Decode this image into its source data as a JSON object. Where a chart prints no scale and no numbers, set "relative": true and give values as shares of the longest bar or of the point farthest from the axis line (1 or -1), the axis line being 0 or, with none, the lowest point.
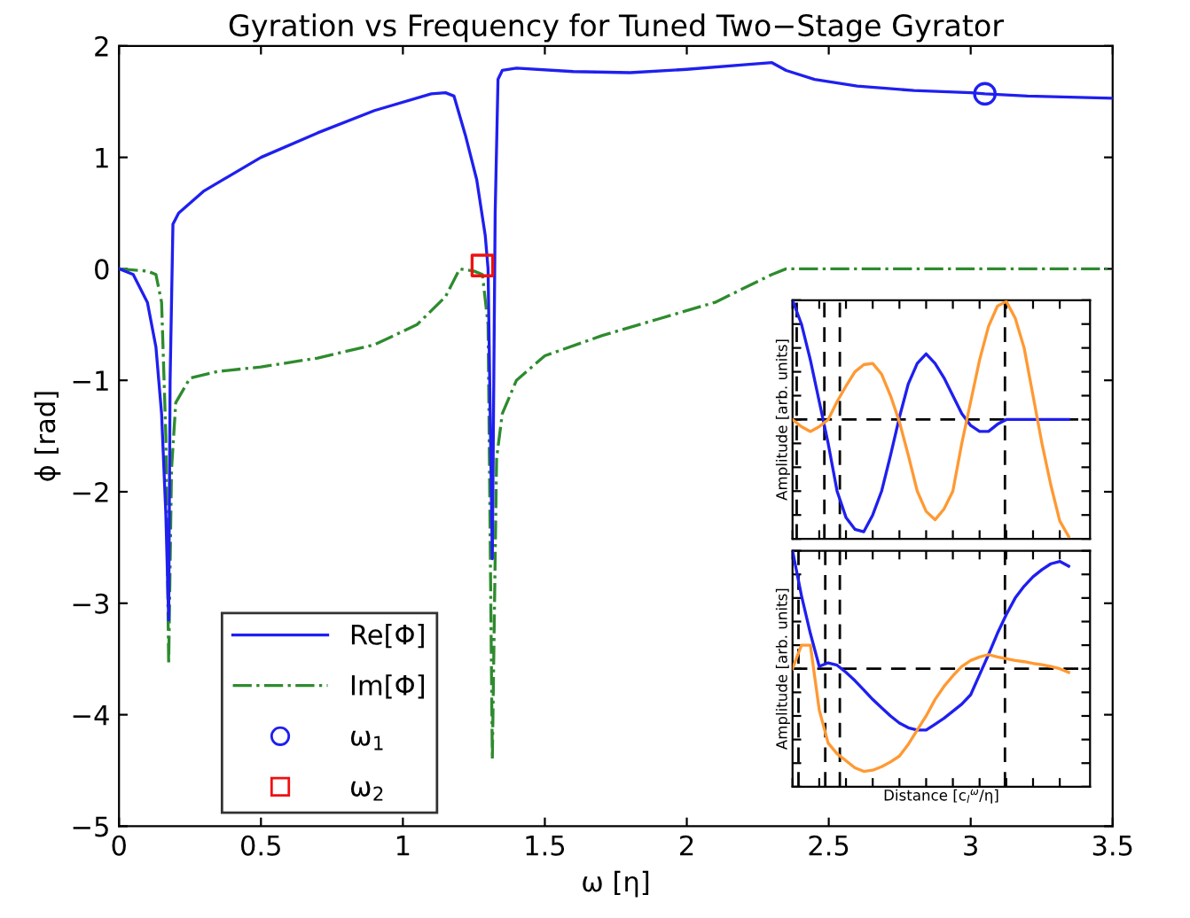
{
  "chart_data": [
    {
      "type": "line",
      "title": "Gyration vs Frequency for Tuned Two−Stage Gyrator",
      "xlabel": "ω [η]",
      "ylabel": "ϕ [rad]",
      "xlim": [
        0,
        3.5
      ],
      "ylim": [
        -5,
        2
      ],
      "xticks": [
        0,
        0.5,
        1,
        1.5,
        2,
        2.5,
        3,
        3.5
      ],
      "yticks": [
        -5,
        -4,
        -3,
        -2,
        -1,
        0,
        1,
        2
      ],
      "grid": false,
      "legend": "bottom left",
      "series": [
        {
          "name": "Re[Φ]",
          "color": "#1f1ff0",
          "line_style": "solid",
          "x": [
            0,
            0.05,
            0.1,
            0.13,
            0.15,
            0.165,
            0.175,
            0.18,
            0.19,
            0.21,
            0.3,
            0.5,
            0.7,
            0.9,
            1.1,
            1.15,
            1.18,
            1.22,
            1.26,
            1.29,
            1.3,
            1.315,
            1.325,
            1.335,
            1.35,
            1.4,
            1.6,
            1.8,
            2.0,
            2.2,
            2.3,
            2.35,
            2.45,
            2.6,
            2.8,
            3.0,
            3.05,
            3.2,
            3.5
          ],
          "values": [
            0,
            -0.05,
            -0.3,
            -0.7,
            -1.3,
            -2.2,
            -3.15,
            -1.0,
            0.4,
            0.5,
            0.7,
            1.0,
            1.22,
            1.42,
            1.57,
            1.58,
            1.55,
            1.2,
            0.8,
            0.3,
            0,
            -2.6,
            0.5,
            1.7,
            1.78,
            1.8,
            1.77,
            1.76,
            1.79,
            1.83,
            1.85,
            1.78,
            1.7,
            1.64,
            1.6,
            1.58,
            1.57,
            1.55,
            1.53
          ]
        },
        {
          "name": "Im[Φ]",
          "color": "#2e8b2e",
          "line_style": "dashdot",
          "x": [
            0,
            0.1,
            0.13,
            0.15,
            0.165,
            0.175,
            0.185,
            0.2,
            0.25,
            0.35,
            0.5,
            0.7,
            0.9,
            1.05,
            1.15,
            1.2,
            1.25,
            1.28,
            1.3,
            1.315,
            1.33,
            1.35,
            1.4,
            1.5,
            1.7,
            1.9,
            2.1,
            2.3,
            2.35,
            2.6,
            3.0,
            3.5
          ],
          "values": [
            0,
            -0.02,
            -0.05,
            -0.3,
            -1.5,
            -3.55,
            -1.8,
            -1.2,
            -0.98,
            -0.92,
            -0.88,
            -0.8,
            -0.68,
            -0.5,
            -0.25,
            0,
            -0.02,
            -0.05,
            -0.5,
            -4.4,
            -1.7,
            -1.3,
            -1.0,
            -0.78,
            -0.6,
            -0.45,
            -0.3,
            -0.05,
            0,
            0,
            0,
            0
          ]
        },
        {
          "name": "ω$_{1}$",
          "type": "scatter",
          "marker": "circle",
          "color": "#1f1ff0",
          "x": [
            3.05
          ],
          "values": [
            1.57
          ]
        },
        {
          "name": "ω$_{2}$",
          "type": "scatter",
          "marker": "square",
          "color": "#ee1111",
          "x": [
            1.28
          ],
          "values": [
            0.03
          ]
        }
      ]
    },
    {
      "type": "line",
      "relative": true,
      "ylabel": "Amplitude [arb. units]",
      "tick_labels": false,
      "grid": false,
      "categories": [
        null,
        null,
        null,
        null,
        null,
        null,
        null,
        null,
        null,
        null,
        null,
        null,
        null,
        null,
        null,
        null,
        null,
        null,
        null,
        null,
        null,
        null,
        null,
        null,
        null,
        null,
        null,
        null,
        null,
        null,
        null,
        null
      ],
      "series": [
        {
          "color": "#1f1ff0",
          "values": [
            1.0,
            0.8,
            0.5,
            0.15,
            -0.2,
            -0.6,
            -0.82,
            -0.92,
            -0.94,
            -0.8,
            -0.6,
            -0.3,
            0.02,
            0.3,
            0.47,
            0.55,
            0.47,
            0.35,
            0.2,
            0.05,
            -0.05,
            -0.1,
            -0.1,
            -0.04,
            0,
            0,
            0,
            0,
            0,
            0,
            0,
            0
          ]
        },
        {
          "color": "#ff9933",
          "values": [
            0,
            -0.06,
            -0.1,
            -0.06,
            0,
            0.15,
            0.28,
            0.4,
            0.46,
            0.47,
            0.38,
            0.2,
            -0.02,
            -0.3,
            -0.6,
            -0.77,
            -0.84,
            -0.75,
            -0.6,
            -0.2,
            0.15,
            0.5,
            0.78,
            0.95,
            0.99,
            0.85,
            0.6,
            0.2,
            -0.2,
            -0.55,
            -0.85,
            -0.98
          ]
        }
      ]
    },
    {
      "type": "line",
      "relative": true,
      "ylabel": "Amplitude [arb. units]",
      "xlabel": "Distance [c$_{l}$$^{ω}$/η]",
      "tick_labels": false,
      "grid": false,
      "categories": [
        null,
        null,
        null,
        null,
        null,
        null,
        null,
        null,
        null,
        null,
        null,
        null,
        null,
        null,
        null,
        null,
        null,
        null,
        null,
        null,
        null,
        null,
        null,
        null,
        null,
        null,
        null,
        null,
        null,
        null,
        null,
        null
      ],
      "series": [
        {
          "color": "#1f1ff0",
          "values": [
            1.0,
            0.62,
            0.3,
            0.02,
            0.05,
            0.03,
            -0.03,
            -0.1,
            -0.18,
            -0.26,
            -0.33,
            -0.4,
            -0.46,
            -0.5,
            -0.52,
            -0.52,
            -0.47,
            -0.42,
            -0.36,
            -0.3,
            -0.22,
            -0.05,
            0.12,
            0.3,
            0.46,
            0.6,
            0.7,
            0.78,
            0.84,
            0.89,
            0.91,
            0.87
          ]
        },
        {
          "color": "#ff9933",
          "values": [
            0,
            0.2,
            0.2,
            -0.35,
            -0.63,
            -0.72,
            -0.78,
            -0.84,
            -0.87,
            -0.86,
            -0.83,
            -0.79,
            -0.74,
            -0.64,
            -0.52,
            -0.4,
            -0.26,
            -0.15,
            -0.06,
            0.02,
            0.07,
            0.1,
            0.12,
            0.1,
            0.085,
            0.07,
            0.06,
            0.045,
            0.035,
            0.02,
            0,
            -0.03
          ]
        }
      ]
    }
  ]
}
